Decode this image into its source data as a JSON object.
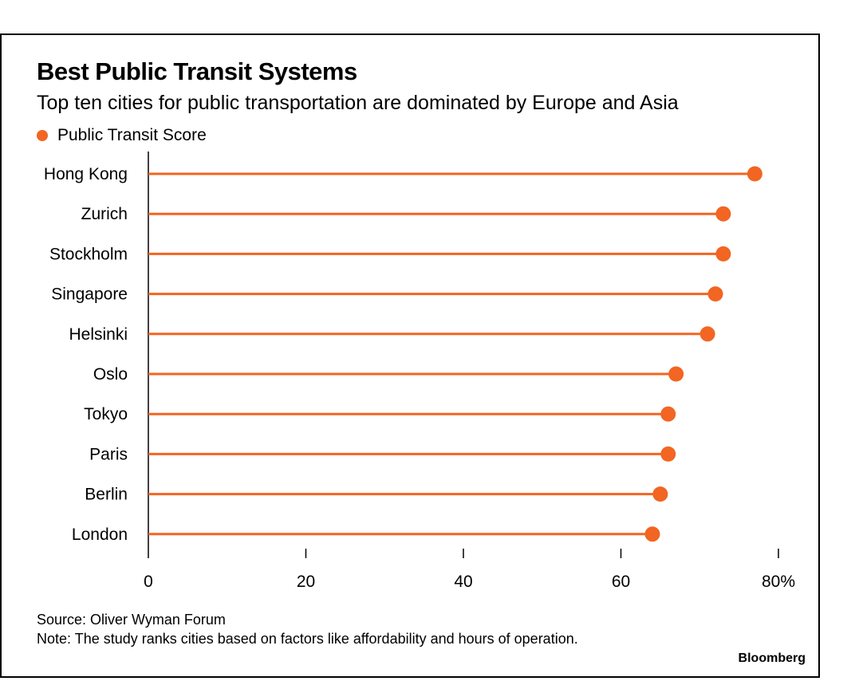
{
  "chart_data": {
    "type": "scatter",
    "style": "lollipop",
    "orientation": "horizontal",
    "title": "Best Public Transit Systems",
    "subtitle": "Top ten cities for public transportation are dominated by Europe and Asia",
    "legend": [
      "Public Transit Score"
    ],
    "categories": [
      "Hong Kong",
      "Zurich",
      "Stockholm",
      "Singapore",
      "Helsinki",
      "Oslo",
      "Tokyo",
      "Paris",
      "Berlin",
      "London"
    ],
    "series": [
      {
        "name": "Public Transit Score",
        "values": [
          77,
          73,
          73,
          72,
          71,
          67,
          66,
          66,
          65,
          64
        ]
      }
    ],
    "xlim": [
      0,
      80
    ],
    "xticks": [
      0,
      20,
      40,
      60,
      80
    ],
    "xtick_labels": [
      "0",
      "20",
      "40",
      "60",
      "80%"
    ],
    "xlabel": "",
    "ylabel": "",
    "grid": false,
    "legend_position": "top-left"
  },
  "colors": {
    "series": "#f26522",
    "axis": "#000000"
  },
  "footer": {
    "source": "Source: Oliver Wyman Forum",
    "note": "Note: The study ranks cities based on factors like affordability and hours of operation.",
    "brand": "Bloomberg"
  }
}
